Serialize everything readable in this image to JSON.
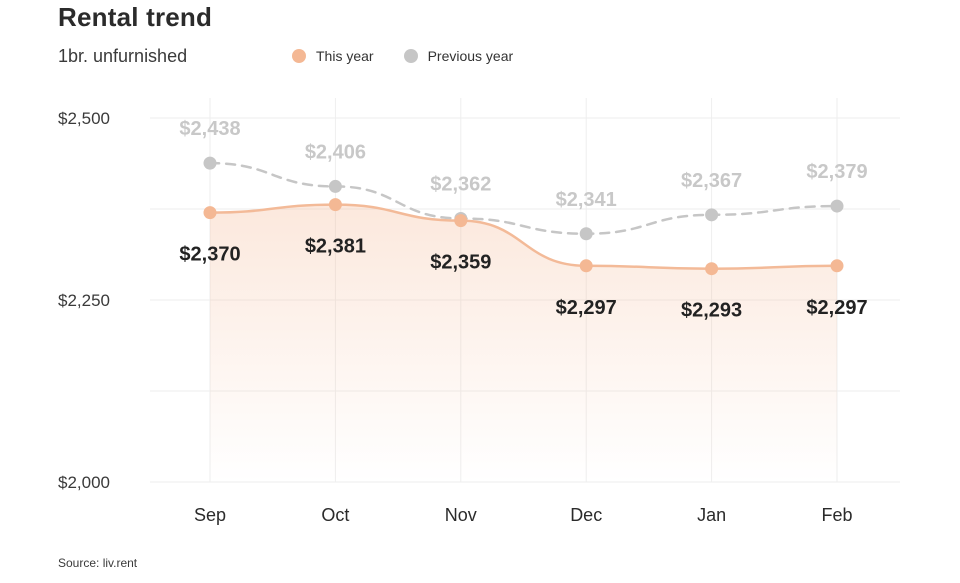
{
  "title": "Rental trend",
  "subtitle": "1br. unfurnished",
  "legend": {
    "this_year": "This year",
    "previous_year": "Previous year"
  },
  "source": "Source: liv.rent",
  "colors": {
    "this_year": "#f4b894",
    "this_year_line": "#f3ba98",
    "previous_year": "#c6c6c6",
    "grid": "#eeeeee"
  },
  "chart_data": {
    "type": "line",
    "title": "Rental trend",
    "subtitle": "1br. unfurnished",
    "categories": [
      "Sep",
      "Oct",
      "Nov",
      "Dec",
      "Jan",
      "Feb"
    ],
    "series": [
      {
        "name": "This year",
        "values": [
          2370,
          2381,
          2359,
          2297,
          2293,
          2297
        ],
        "labels": [
          "$2,370",
          "$2,381",
          "$2,359",
          "$2,297",
          "$2,293",
          "$2,297"
        ],
        "style": "solid-area"
      },
      {
        "name": "Previous year",
        "values": [
          2438,
          2406,
          2362,
          2341,
          2367,
          2379
        ],
        "labels": [
          "$2,438",
          "$2,406",
          "$2,362",
          "$2,341",
          "$2,367",
          "$2,379"
        ],
        "style": "dashed"
      }
    ],
    "yticks": [
      2000,
      2250,
      2500
    ],
    "ytick_labels": [
      "$2,000",
      "$2,250",
      "$2,500"
    ],
    "ylim": [
      2000,
      2500
    ],
    "xlabel": "",
    "ylabel": "",
    "grid": true,
    "legend_position": "top-center"
  }
}
